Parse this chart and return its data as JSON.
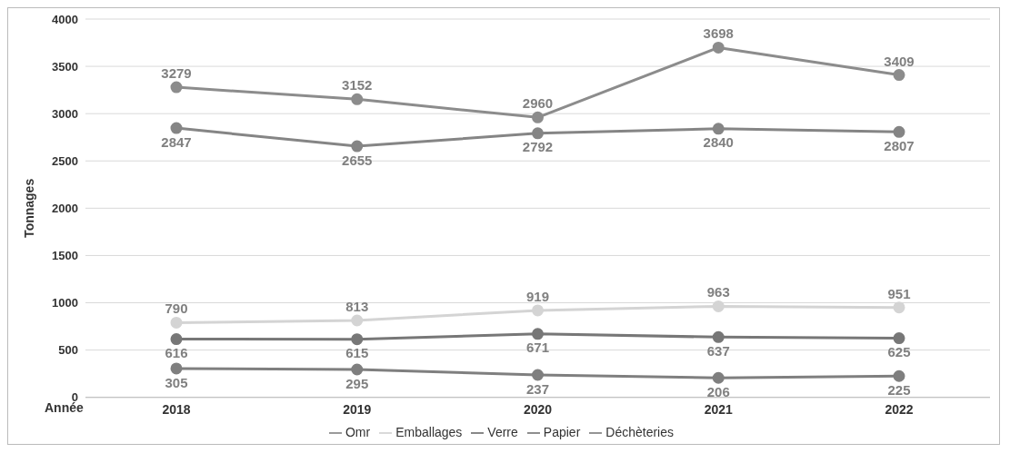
{
  "chart_data": {
    "type": "line",
    "xlabel": "Année",
    "ylabel": "Tonnages",
    "categories": [
      "2018",
      "2019",
      "2020",
      "2021",
      "2022"
    ],
    "series": [
      {
        "name": "Omr",
        "color": "#8c8c8c",
        "values": [
          3279,
          3152,
          2960,
          3698,
          3409
        ]
      },
      {
        "name": "Emballages",
        "color": "#d4d4d4",
        "values": [
          790,
          813,
          919,
          963,
          951
        ]
      },
      {
        "name": "Verre",
        "color": "#777777",
        "values": [
          616,
          615,
          671,
          637,
          625
        ]
      },
      {
        "name": "Papier",
        "color": "#7f7f7f",
        "values": [
          305,
          295,
          237,
          206,
          225
        ]
      },
      {
        "name": "Déchèteries",
        "color": "#858585",
        "values": [
          2847,
          2655,
          2792,
          2840,
          2807
        ]
      }
    ],
    "ylim": [
      0,
      4000
    ],
    "yticks": [
      0,
      500,
      1000,
      1500,
      2000,
      2500,
      3000,
      3500,
      4000
    ],
    "grid": "y",
    "legend": "bottom",
    "marker": "circle",
    "line_style": "solid",
    "data_labels": true
  }
}
